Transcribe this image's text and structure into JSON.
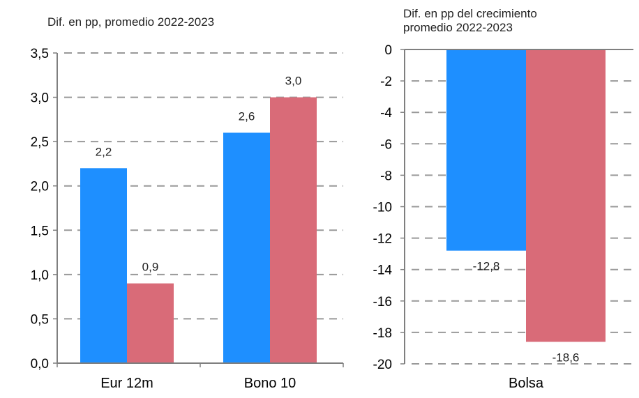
{
  "colors": {
    "series_a": "#1e8fff",
    "series_b": "#d96b78",
    "grid": "#999999",
    "axis": "#7f7f7f"
  },
  "chart_data": [
    {
      "type": "bar",
      "title": "",
      "ylabel": "Dif.  en pp, promedio 2022-2023",
      "xlabel": "",
      "categories": [
        "Eur 12m",
        "Bono 10"
      ],
      "series": [
        {
          "values": [
            2.2,
            2.6
          ],
          "labels": [
            "2,2",
            "2,6"
          ],
          "color": "#1e8fff"
        },
        {
          "values": [
            0.9,
            3.0
          ],
          "labels": [
            "0,9",
            "3,0"
          ],
          "color": "#d96b78"
        }
      ],
      "ylim": [
        0,
        3.5
      ],
      "yticks": [
        0,
        0.5,
        1.0,
        1.5,
        2.0,
        2.5,
        3.0,
        3.5
      ],
      "ytick_labels": [
        "0,0",
        "0,5",
        "1,0",
        "1,5",
        "2,0",
        "2,5",
        "3,0",
        "3,5"
      ],
      "grid": true,
      "legend": "none"
    },
    {
      "type": "bar",
      "title": "",
      "ylabel": "Dif.  en pp del crecimiento\npromedio 2022-2023",
      "xlabel": "",
      "categories": [
        "Bolsa"
      ],
      "series": [
        {
          "values": [
            -12.8
          ],
          "labels": [
            "-12,8"
          ],
          "color": "#1e8fff"
        },
        {
          "values": [
            -18.6
          ],
          "labels": [
            "-18,6"
          ],
          "color": "#d96b78"
        }
      ],
      "ylim": [
        -20,
        0
      ],
      "yticks": [
        0,
        -2,
        -4,
        -6,
        -8,
        -10,
        -12,
        -14,
        -16,
        -18,
        -20
      ],
      "ytick_labels": [
        "0",
        "-2",
        "-4",
        "-6",
        "-8",
        "-10",
        "-12",
        "-14",
        "-16",
        "-18",
        "-20"
      ],
      "grid": true,
      "legend": "none"
    }
  ]
}
